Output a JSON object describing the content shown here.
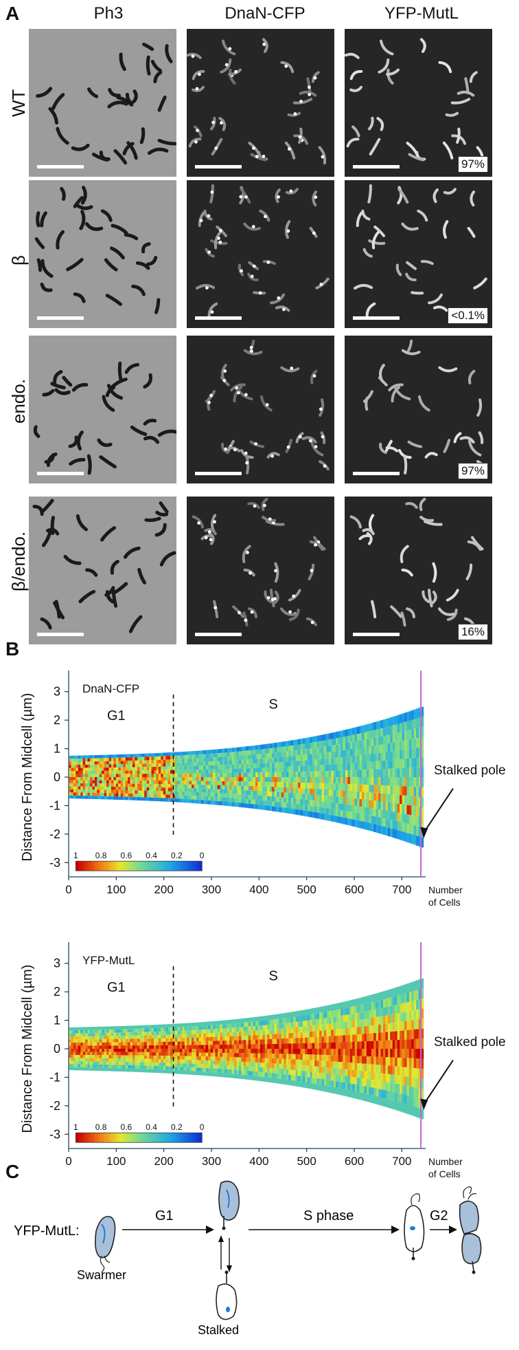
{
  "panel_a": {
    "letter": "A",
    "columns": [
      "Ph3",
      "DnaN-CFP",
      "YFP-MutL"
    ],
    "rows": [
      {
        "label": "WT",
        "percent": "97%"
      },
      {
        "label": "β",
        "percent": "<0.1%"
      },
      {
        "label": "endo.",
        "percent": "97%"
      },
      {
        "label": "β/endo.",
        "percent": "16%"
      }
    ]
  },
  "panel_b": {
    "letter": "B",
    "colorbar_ticks": [
      "1",
      "0.8",
      "0.6",
      "0.4",
      "0.2",
      "0"
    ],
    "colors": {
      "high": "#cc0000",
      "mid": "#e8e82a",
      "low": "#1030d8"
    }
  },
  "chart_data": [
    {
      "type": "heatmap",
      "title": "DnaN-CFP",
      "ylabel": "Distance From Midcell (µm)",
      "xlabel": "Number of Cells",
      "xlim": [
        0,
        750
      ],
      "ylim": [
        -3.5,
        3.5
      ],
      "xticks": [
        0,
        100,
        200,
        300,
        400,
        500,
        600,
        700
      ],
      "yticks": [
        3,
        2,
        1,
        0,
        -1,
        -2,
        -3
      ],
      "xtick_labels": [
        "0",
        "100",
        "200",
        "300",
        "400",
        "500",
        "600",
        "700"
      ],
      "ytick_labels": [
        "3",
        "2",
        "1",
        "0",
        "-1",
        "-2",
        "-3"
      ],
      "phases": [
        {
          "label": "G1"
        },
        {
          "label": "S"
        }
      ],
      "g1_s_boundary": 220,
      "annotation": "Stalked pole",
      "cell_length_half_width_um": {
        "start": 0.75,
        "end_top": 2.2,
        "end_bottom": -2.2
      },
      "signal_pattern": "focal"
    },
    {
      "type": "heatmap",
      "title": "YFP-MutL",
      "ylabel": "Distance From Midcell (µm)",
      "xlabel": "Number of Cells",
      "xlim": [
        0,
        750
      ],
      "ylim": [
        -3.5,
        3.5
      ],
      "xticks": [
        0,
        100,
        200,
        300,
        400,
        500,
        600,
        700
      ],
      "yticks": [
        3,
        2,
        1,
        0,
        -1,
        -2,
        -3
      ],
      "xtick_labels": [
        "0",
        "100",
        "200",
        "300",
        "400",
        "500",
        "600",
        "700"
      ],
      "ytick_labels": [
        "3",
        "2",
        "1",
        "0",
        "-1",
        "-2",
        "-3"
      ],
      "phases": [
        {
          "label": "G1"
        },
        {
          "label": "S"
        }
      ],
      "g1_s_boundary": 220,
      "annotation": "Stalked pole",
      "cell_length_half_width_um": {
        "start": 0.75,
        "end_top": 2.2,
        "end_bottom": -2.2
      },
      "signal_pattern": "diffuse"
    }
  ],
  "axis_footer": {
    "line1": "Number",
    "line2": "of Cells"
  },
  "panel_c": {
    "letter": "C",
    "row_label": "YFP-MutL:",
    "steps": [
      "G1",
      "S phase",
      "G2"
    ],
    "swarmer_label": "Swarmer",
    "stalked_label": "Stalked",
    "cell_fill": "#a8c0da",
    "focus_color": "#1a7fd8"
  }
}
